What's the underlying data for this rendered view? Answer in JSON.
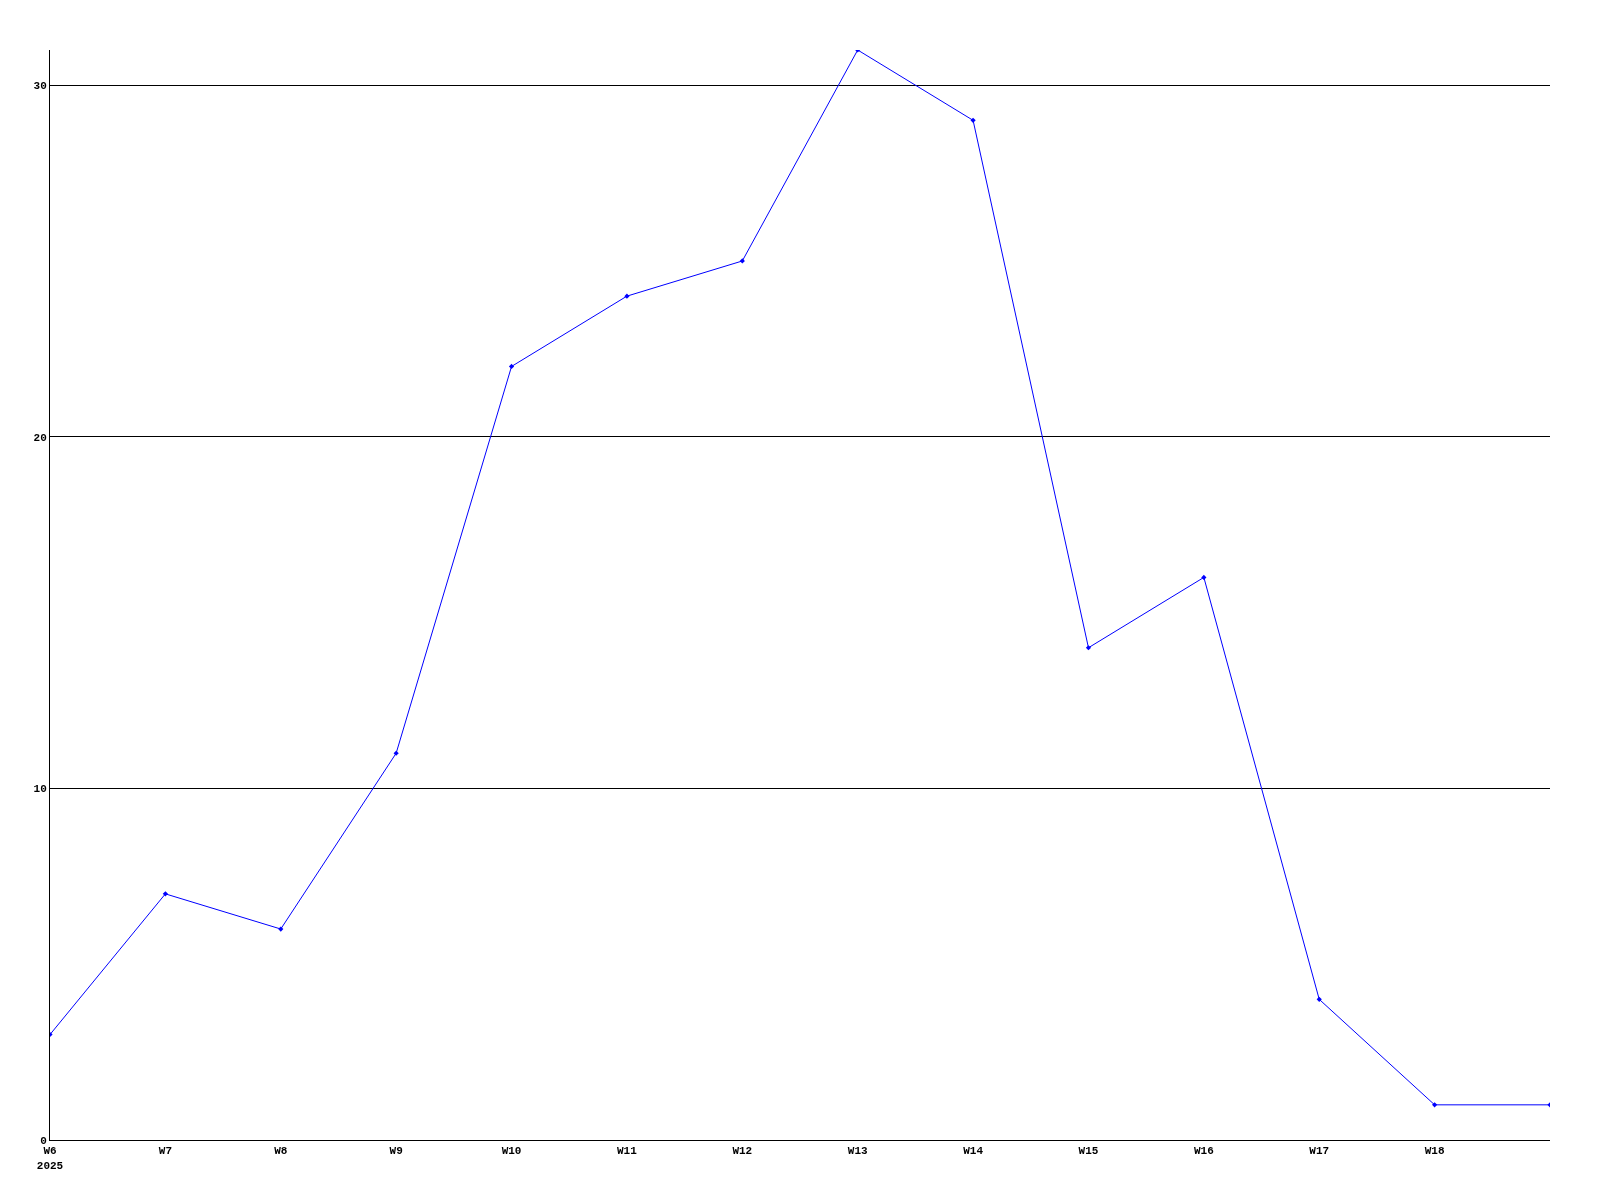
{
  "chart_data": {
    "type": "line",
    "categories": [
      "W6\n2025",
      "W7",
      "W8",
      "W9",
      "W10",
      "W11",
      "W12",
      "W13",
      "W14",
      "W15",
      "W16",
      "W17",
      "W18",
      null
    ],
    "series": [
      {
        "color": "#0000ff",
        "values": [
          3,
          7,
          6,
          11,
          22,
          24,
          25,
          31,
          29,
          14,
          16,
          4,
          1,
          1
        ]
      }
    ],
    "ylim": [
      0,
      31
    ],
    "yticks": [
      0,
      10,
      20,
      30
    ],
    "grid": "y",
    "marker": "diamond",
    "line_style": "solid"
  }
}
